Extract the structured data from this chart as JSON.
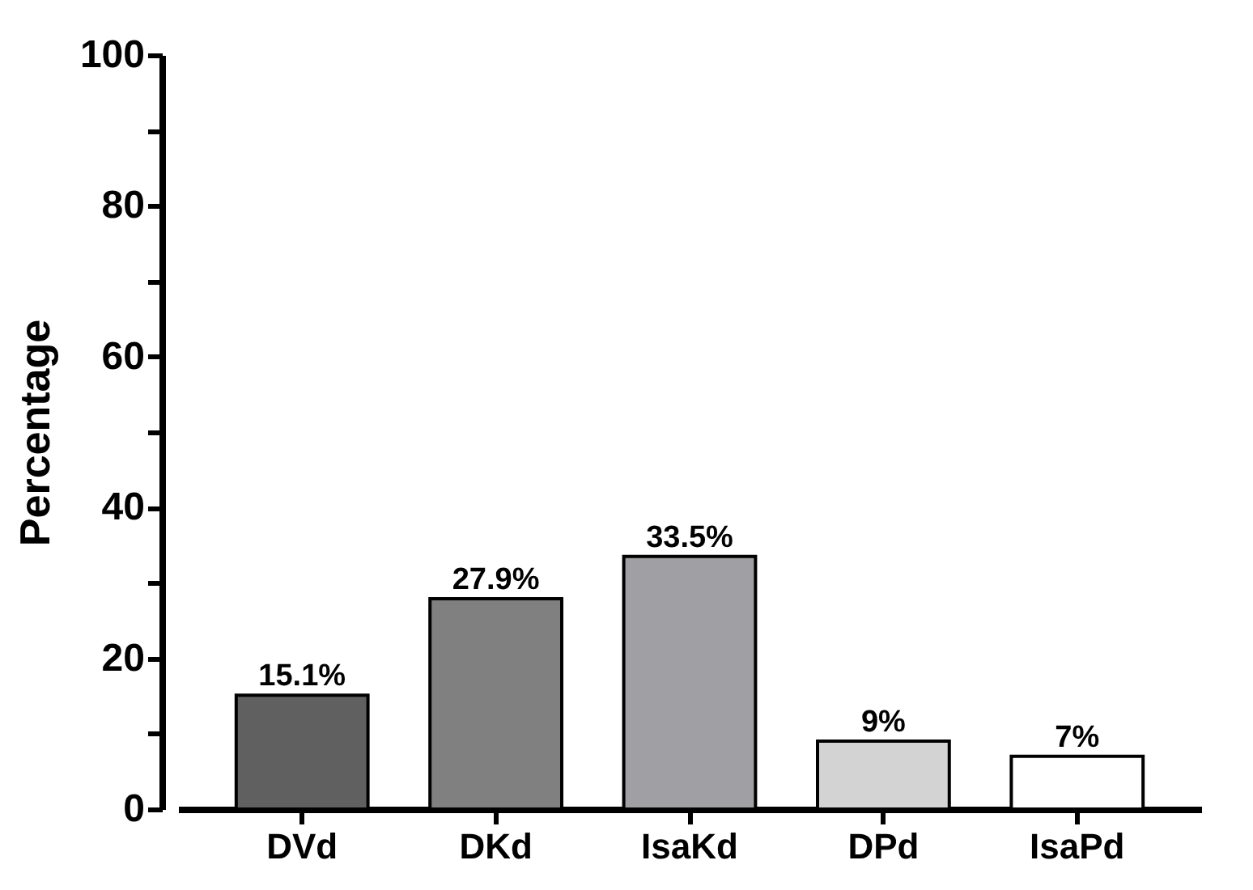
{
  "chart_data": {
    "type": "bar",
    "ylabel": "Percentage",
    "categories": [
      "DVd",
      "DKd",
      "IsaKd",
      "DPd",
      "IsaPd"
    ],
    "values": [
      15.1,
      27.9,
      33.5,
      9,
      7
    ],
    "colors": [
      "#606060",
      "#808080",
      "#a0a0a4",
      "#d3d3d3",
      "#ffffff"
    ],
    "value_labels": [
      "15.1%",
      "27.9%",
      "33.5%",
      "9%",
      "7%"
    ],
    "ylim": [
      0,
      100
    ],
    "yticks": [
      0,
      {
        "value": 10,
        "label": null
      },
      20,
      {
        "value": 30,
        "label": null
      },
      40,
      {
        "value": 50,
        "label": null
      },
      60,
      {
        "value": 70,
        "label": null
      },
      80,
      {
        "value": 90,
        "label": null
      },
      100
    ],
    "grid": false
  }
}
